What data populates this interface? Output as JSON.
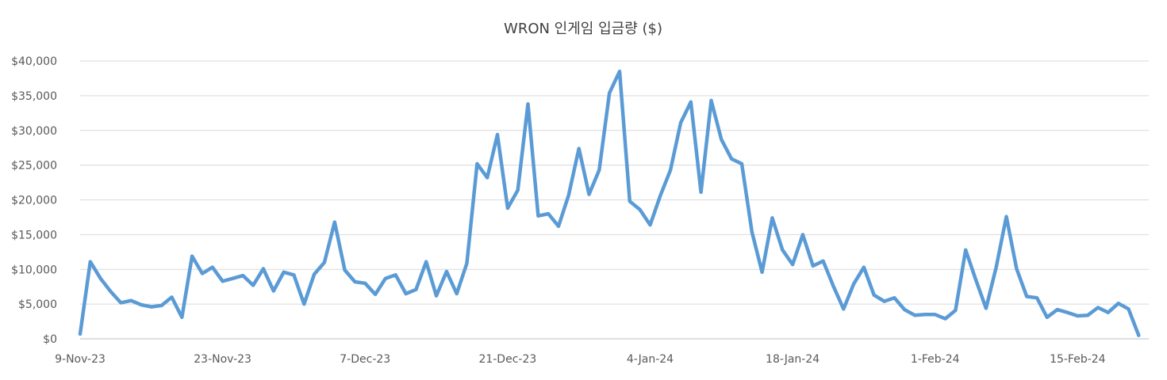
{
  "chart_data": {
    "type": "line",
    "title": "WRON 인게임 입금량 ($)",
    "xlabel": "",
    "ylabel": "",
    "ylim": [
      0,
      40000
    ],
    "y_ticks": [
      0,
      5000,
      10000,
      15000,
      20000,
      25000,
      30000,
      35000,
      40000
    ],
    "y_tick_labels": [
      "$0",
      "$5,000",
      "$10,000",
      "$15,000",
      "$20,000",
      "$25,000",
      "$30,000",
      "$35,000",
      "$40,000"
    ],
    "x_start": "2023-11-09",
    "x_tick_labels": [
      "9-Nov-23",
      "23-Nov-23",
      "7-Dec-23",
      "21-Dec-23",
      "4-Jan-24",
      "18-Jan-24",
      "1-Feb-24",
      "15-Feb-24"
    ],
    "grid": true,
    "line_color": "#5B9BD5",
    "series": [
      {
        "name": "",
        "values": [
          700,
          11100,
          8700,
          6800,
          5200,
          5500,
          4900,
          4600,
          4800,
          6000,
          3100,
          11900,
          9400,
          10300,
          8300,
          8700,
          9100,
          7700,
          10100,
          6900,
          9600,
          9200,
          5000,
          9300,
          11000,
          16800,
          9900,
          8200,
          8000,
          6400,
          8700,
          9200,
          6500,
          7100,
          11100,
          6200,
          9700,
          6500,
          10900,
          25200,
          23200,
          29400,
          18800,
          21400,
          33800,
          17700,
          18000,
          16200,
          20700,
          27400,
          20800,
          24300,
          35400,
          38500,
          19800,
          18600,
          16400,
          20600,
          24300,
          31100,
          34100,
          21100,
          34300,
          28700,
          25900,
          25200,
          15400,
          9600,
          17400,
          12800,
          10700,
          15000,
          10500,
          11200,
          7600,
          4300,
          7900,
          10300,
          6300,
          5400,
          5900,
          4200,
          3400,
          3500,
          3500,
          2900,
          4100,
          12800,
          8500,
          4400,
          10300,
          17600,
          10100,
          6100,
          5900,
          3100,
          4200,
          3800,
          3300,
          3400,
          4500,
          3800,
          5100,
          4300,
          500
        ]
      }
    ]
  }
}
